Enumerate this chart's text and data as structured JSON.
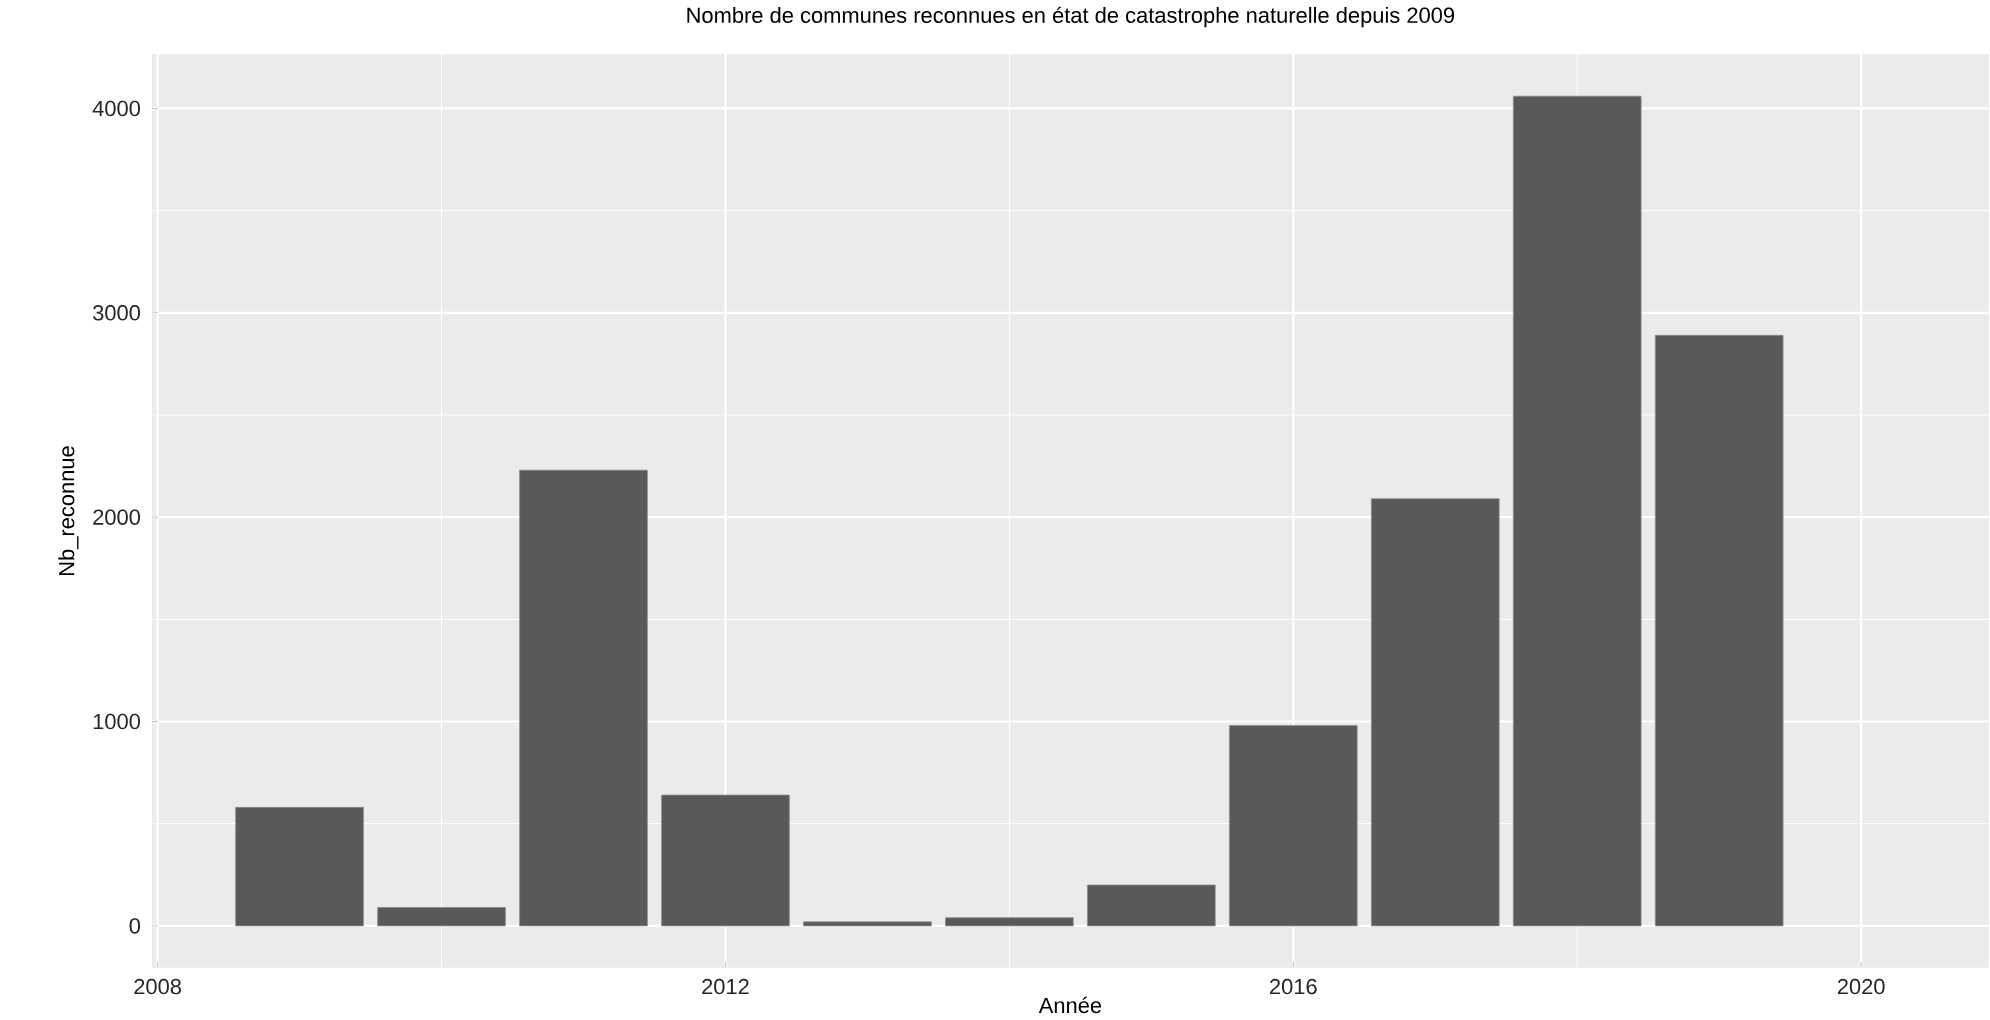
{
  "chart_data": {
    "type": "bar",
    "title": "Nombre de communes reconnues en état de catastrophe naturelle depuis 2009",
    "xlabel": "Année",
    "ylabel": "Nb_reconnue",
    "x": [
      2009,
      2010,
      2011,
      2012,
      2013,
      2014,
      2015,
      2016,
      2017,
      2018,
      2019
    ],
    "values": [
      580,
      90,
      2230,
      640,
      20,
      40,
      200,
      980,
      2090,
      4060,
      2890
    ],
    "color": "#595959",
    "xlim": [
      2007.96,
      2020.9
    ],
    "xticks": [
      2008,
      2012,
      2016,
      2020
    ],
    "ylim": [
      -205,
      4265
    ],
    "yticks": [
      0,
      1000,
      2000,
      3000,
      4000
    ],
    "grid": true
  }
}
